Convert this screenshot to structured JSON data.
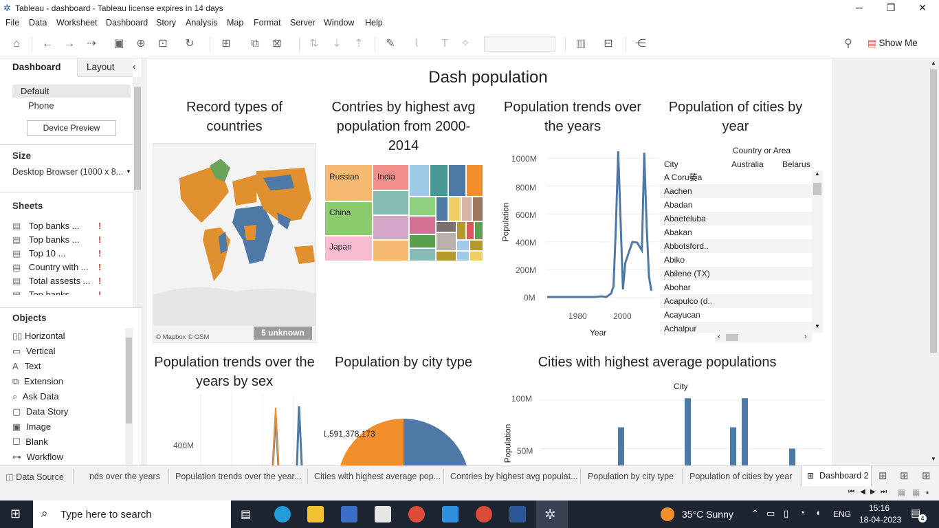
{
  "window": {
    "title": "Tableau - dashboard - Tableau license expires in 14 days"
  },
  "menu": [
    "File",
    "Data",
    "Worksheet",
    "Dashboard",
    "Story",
    "Analysis",
    "Map",
    "Format",
    "Server",
    "Window",
    "Help"
  ],
  "toolbar": {
    "show_me": "Show Me"
  },
  "left": {
    "tab_dashboard": "Dashboard",
    "tab_layout": "Layout",
    "devices": [
      "Default",
      "Phone"
    ],
    "device_preview": "Device Preview",
    "size_label": "Size",
    "size_value": "Desktop Browser (1000 x 8...",
    "sheets_label": "Sheets",
    "sheets": [
      "Top banks ...",
      "Top banks ...",
      "Top 10 ...",
      "Country with ...",
      "Total assests ...",
      "Top banks ..."
    ],
    "objects_label": "Objects",
    "objects": [
      "Horizontal",
      "Vertical",
      "Text",
      "Extension",
      "Ask Data",
      "Data Story",
      "Image",
      "Blank",
      "Workflow"
    ]
  },
  "dashboard": {
    "title": "Dash population",
    "map": {
      "title": "Record types of countries",
      "credit": "© Mapbox © OSM",
      "unknown": "5 unknown"
    },
    "treemap": {
      "title": "Contries by highest avg population from 2000-2014",
      "labels": [
        "Russian",
        "India",
        "China",
        "Japan"
      ],
      "colors": [
        "#f5b971",
        "#f28e8c",
        "#8ccb6e",
        "#f7bcd1"
      ]
    },
    "trend": {
      "title": "Population trends over the years",
      "ylabel": "Population",
      "xlabel": "Year",
      "yticks": [
        "1000M",
        "800M",
        "600M",
        "400M",
        "200M",
        "0M"
      ],
      "xticks": [
        "1980",
        "2000"
      ]
    },
    "table": {
      "title": "Population of cities by year",
      "header_group": "Country or Area",
      "col_city": "City",
      "col_australia": "Australia",
      "col_belarus": "Belarus",
      "rows": [
        "A Coru萎a",
        "Aachen",
        "Abadan",
        "Abaeteluba",
        "Abakan",
        "Abbotsford..",
        "Abiko",
        "Abilene (TX)",
        "Abohar",
        "Acapulco (d..",
        "Acayucan",
        "Achalpur"
      ]
    },
    "sex": {
      "title": "Population trends over the years by sex",
      "ytick": "400M"
    },
    "citytype": {
      "title": "Population by city type",
      "label": "1,591,378,173"
    },
    "bars": {
      "title": "Cities with highest average populations",
      "header": "City",
      "ylabel": "Population",
      "yticks": [
        "100M",
        "50M"
      ]
    }
  },
  "chart_data": [
    {
      "type": "line",
      "title": "Population trends over the years",
      "xlabel": "Year",
      "ylabel": "Population",
      "x": [
        1970,
        1975,
        1980,
        1985,
        1990,
        1993,
        1995,
        1997,
        1998,
        1999,
        2000,
        2002,
        2003,
        2004,
        2006,
        2008,
        2010,
        2011,
        2012,
        2013,
        2014
      ],
      "y": [
        5,
        5,
        5,
        5,
        5,
        10,
        5,
        30,
        80,
        500,
        1050,
        60,
        250,
        300,
        400,
        395,
        340,
        1040,
        520,
        150,
        50
      ],
      "ylim": [
        0,
        1050
      ],
      "xlim": [
        1970,
        2015
      ]
    },
    {
      "type": "bar",
      "title": "Cities with highest average populations",
      "ylabel": "Population",
      "values": [
        2,
        0,
        0,
        0,
        0,
        0,
        0,
        0,
        0,
        0,
        0,
        0,
        0,
        0,
        0,
        0,
        0,
        0,
        0,
        0,
        0,
        0,
        0,
        0,
        0,
        0,
        0,
        0,
        0,
        0,
        0,
        0,
        0,
        0,
        0,
        0,
        0,
        0,
        0,
        0,
        0,
        0,
        0,
        0,
        0,
        0,
        0,
        0,
        0,
        0,
        0,
        0,
        0,
        0,
        0
      ],
      "ylim": [
        0,
        105
      ]
    }
  ],
  "tabs": [
    "Data Source",
    "nds over the years",
    "Population trends over the year...",
    "Cities with highest average pop...",
    "Contries by highest avg populat...",
    "Population by city type",
    "Population of cities by year",
    "Dashboard 2"
  ],
  "taskbar": {
    "search": "Type here to search",
    "weather": "35°C  Sunny",
    "lang": "ENG",
    "time": "15:16",
    "date": "18-04-2023",
    "notif": "4"
  }
}
